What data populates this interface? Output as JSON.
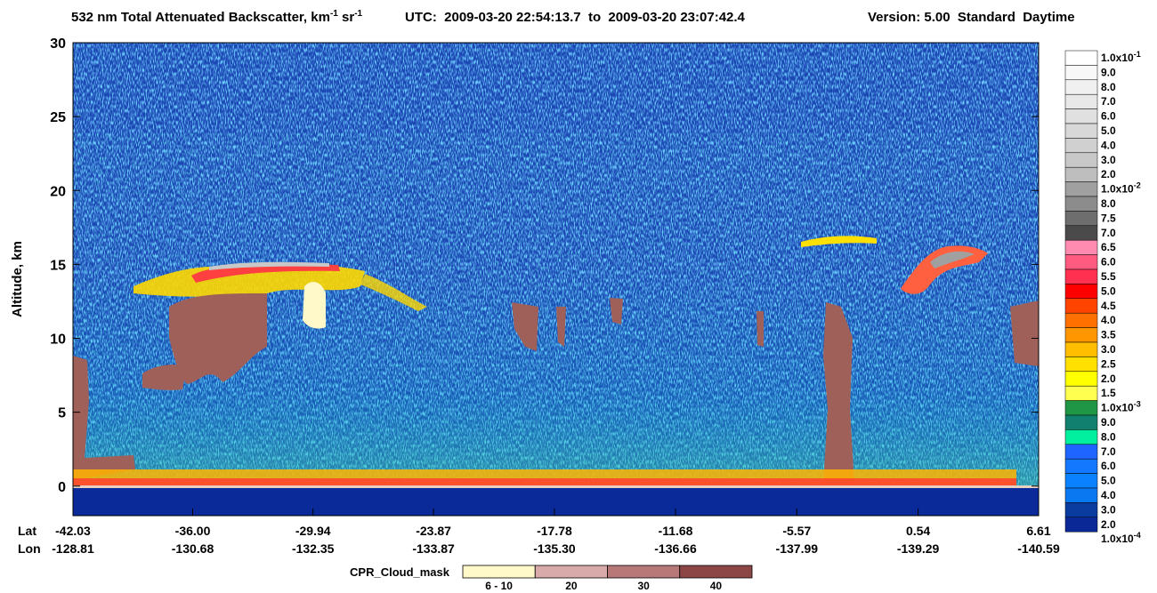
{
  "chart_data": {
    "type": "curtain",
    "title_parts": [
      "532 nm Total Attenuated Backscatter, km",
      "-1",
      " sr",
      "-1"
    ],
    "utc": "UTC:  2009-03-20 22:54:13.7  to  2009-03-20 23:07:42.4",
    "version": "Version: 5.00  Standard  Daytime",
    "ylabel": "Altitude, km",
    "ylim": [
      -2,
      30
    ],
    "yticks": [
      0,
      5,
      10,
      15,
      20,
      25,
      30
    ],
    "xlabel_lat": "Lat",
    "xlabel_lon": "Lon",
    "xlim": [
      -42.03,
      6.61
    ],
    "xticks": [
      {
        "value": -42.03,
        "label": "-42.03"
      },
      {
        "value": -36.0,
        "label": "-36.00"
      },
      {
        "value": -29.94,
        "label": "-29.94"
      },
      {
        "value": -23.87,
        "label": "-23.87"
      },
      {
        "value": -17.78,
        "label": "-17.78"
      },
      {
        "value": -11.68,
        "label": "-11.68"
      },
      {
        "value": -5.57,
        "label": "-5.57"
      },
      {
        "value": 0.54,
        "label": "0.54"
      },
      {
        "value": 6.61,
        "label": "6.61"
      }
    ],
    "lon_labels": [
      "-128.81",
      "-130.68",
      "-132.35",
      "-133.87",
      "-135.30",
      "-136.66",
      "-137.99",
      "-139.29",
      "-140.59"
    ],
    "colorbar_labels": [
      {
        "label": "1.0x10",
        "sup": "-1"
      },
      "9.0",
      "8.0",
      "7.0",
      "6.0",
      "5.0",
      "4.0",
      "3.0",
      "2.0",
      {
        "label": "1.0x10",
        "sup": "-2"
      },
      "8.0",
      "7.5",
      "7.0",
      "6.5",
      "6.0",
      "5.5",
      "5.0",
      "4.5",
      "4.0",
      "3.5",
      "3.0",
      "2.5",
      "2.0",
      "1.5",
      {
        "label": "1.0x10",
        "sup": "-3"
      },
      "9.0",
      "8.0",
      "7.0",
      "6.0",
      "5.0",
      "4.0",
      "3.0",
      "2.0",
      {
        "label": "1.0x10",
        "sup": "-4"
      }
    ],
    "colorbar_colors": [
      "#ffffff",
      "#f8f8f8",
      "#f0f0f0",
      "#e8e8e8",
      "#e0e0e0",
      "#d8d8d8",
      "#d0d0d0",
      "#c8c8c8",
      "#bebebe",
      "#a0a0a0",
      "#8c8c8c",
      "#6e6e6e",
      "#4a4a4a",
      "#ff8cb0",
      "#ff5a80",
      "#ff3050",
      "#ff0000",
      "#ff4400",
      "#ff7000",
      "#ff9600",
      "#ffbe00",
      "#ffe000",
      "#ffff00",
      "#ffff50",
      "#1e9646",
      "#12806e",
      "#00f0a0",
      "#1e64ff",
      "#1478ff",
      "#0a82ff",
      "#0a78f0",
      "#0a3ca0",
      "#0a2896"
    ],
    "cpr_title": "CPR_Cloud_mask",
    "cpr_labels": [
      "6 - 10",
      "20",
      "30",
      "40"
    ],
    "cpr_colors": [
      "#fff8c8",
      "#d8aaaa",
      "#b87878",
      "#8c4646"
    ]
  }
}
